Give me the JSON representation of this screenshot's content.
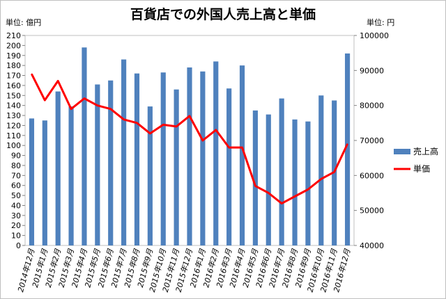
{
  "chart_data": {
    "type": "bar",
    "title": "百貨店での外国人売上高と単価",
    "left_unit": "単位: 億円",
    "right_unit": "単位: 円",
    "categories": [
      "2014年12月",
      "2015年1月",
      "2015年2月",
      "2015年3月",
      "2015年4月",
      "2015年5月",
      "2015年6月",
      "2015年7月",
      "2015年8月",
      "2015年9月",
      "2015年10月",
      "2015年11月",
      "2015年12月",
      "2016年1月",
      "2016年2月",
      "2016年3月",
      "2016年4月",
      "2016年5月",
      "2016年6月",
      "2016年7月",
      "2016年8月",
      "2016年9月",
      "2016年10月",
      "2016年11月",
      "2016年12月"
    ],
    "series": [
      {
        "name": "売上高",
        "type": "bar",
        "axis": "left",
        "color": "#4f81bd",
        "values": [
          127,
          125,
          154,
          139,
          198,
          161,
          165,
          186,
          172,
          139,
          173,
          156,
          178,
          174,
          184,
          157,
          180,
          135,
          131,
          147,
          126,
          124,
          150,
          145,
          192
        ]
      },
      {
        "name": "単価",
        "type": "line",
        "axis": "right",
        "color": "#ff0000",
        "values": [
          89000,
          81500,
          87000,
          79000,
          82000,
          80000,
          79000,
          76000,
          75000,
          72000,
          74500,
          74000,
          77000,
          70000,
          73000,
          68000,
          68000,
          57000,
          55000,
          52000,
          54000,
          56000,
          59000,
          61000,
          69000
        ]
      }
    ],
    "y_left": {
      "min": 0,
      "max": 210,
      "step": 10
    },
    "y_right": {
      "min": 40000,
      "max": 100000,
      "step": 10000
    },
    "legend": {
      "position": "right"
    },
    "grid": false
  }
}
